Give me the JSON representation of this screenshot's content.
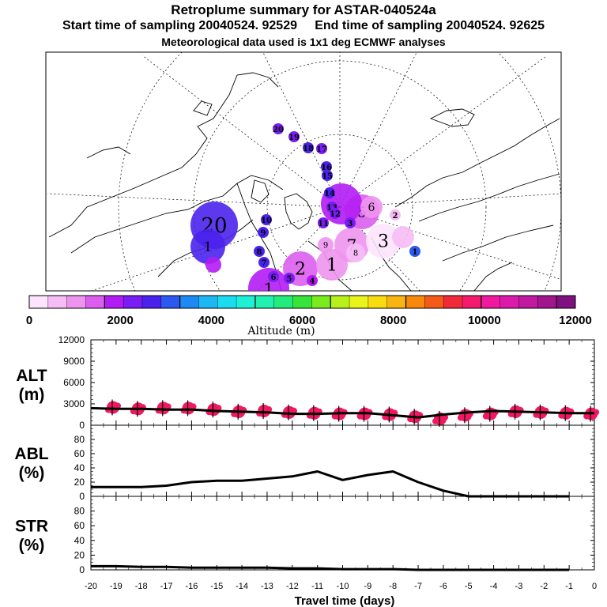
{
  "header": {
    "title": "Retroplume summary for ASTAR-040524a",
    "sampling_line": "Start time of sampling 20040524. 92529     End time of sampling 20040524. 92625",
    "met_line": "Meteorological data used is 1x1 deg ECMWF analyses"
  },
  "colorbar": {
    "label": "Altitude (m)",
    "ticks": [
      "0",
      "2000",
      "4000",
      "6000",
      "8000",
      "10000",
      "12000"
    ],
    "colors": [
      "#fce4fc",
      "#f6bcf6",
      "#ee94ee",
      "#dc5ef0",
      "#b21cf4",
      "#7a1cf4",
      "#4a22ec",
      "#2a58f0",
      "#1e88f4",
      "#1cb8f4",
      "#1cdcf0",
      "#1ef0d6",
      "#22f0b0",
      "#22ec7c",
      "#36e43a",
      "#7aec1e",
      "#b8f01c",
      "#e8f41c",
      "#f8dc10",
      "#f8b410",
      "#f8880c",
      "#f45a18",
      "#f02a3a",
      "#f41a6e",
      "#f01a9e",
      "#dc1aaa",
      "#c0189e",
      "#a0168c",
      "#801080"
    ]
  },
  "map": {
    "trajectory_labels": [
      "20",
      "19",
      "18",
      "17",
      "16",
      "15",
      "14",
      "13",
      "12",
      "11",
      "10",
      "9",
      "8",
      "7",
      "6",
      "5",
      "4",
      "3",
      "2",
      "1"
    ]
  },
  "chart_data": [
    {
      "type": "line",
      "panel": "ALT",
      "ylabel": "ALT (m)",
      "ylabel_lines": [
        "ALT",
        "(m)"
      ],
      "ylim": [
        0,
        12000
      ],
      "yticks": [
        "0",
        "3000",
        "6000",
        "9000",
        "12000"
      ],
      "x": [
        -20,
        -19,
        -18,
        -17,
        -16,
        -15,
        -14,
        -13,
        -12,
        -11,
        -10,
        -9,
        -8,
        -7,
        -6,
        -5,
        -4,
        -3,
        -2,
        -1,
        0
      ],
      "series": [
        {
          "name": "mean altitude",
          "values": [
            2400,
            2300,
            2300,
            2200,
            2200,
            2000,
            1900,
            1800,
            1600,
            1600,
            1700,
            1700,
            1400,
            1100,
            1500,
            1800,
            2000,
            1900,
            1800,
            1700,
            1700
          ]
        },
        {
          "name": "altitude spread (scatter)",
          "values": [
            2500,
            2300,
            2400,
            2400,
            2200,
            1900,
            2000,
            1800,
            1700,
            1600,
            1600,
            1500,
            1200,
            900,
            1400,
            1600,
            1900,
            1800,
            1700,
            1600,
            1600
          ]
        }
      ]
    },
    {
      "type": "line",
      "panel": "ABL",
      "ylabel": "ABL (%)",
      "ylabel_lines": [
        "ABL",
        "(%)"
      ],
      "ylim": [
        0,
        100
      ],
      "yticks": [
        "0",
        "20",
        "40",
        "60",
        "80"
      ],
      "x": [
        -20,
        -19,
        -18,
        -17,
        -16,
        -15,
        -14,
        -13,
        -12,
        -11,
        -10,
        -9,
        -8,
        -7,
        -6,
        -5,
        -4,
        -3,
        -2,
        -1
      ],
      "series": [
        {
          "name": "fraction in boundary layer",
          "values": [
            13,
            13,
            13,
            15,
            20,
            22,
            22,
            25,
            28,
            35,
            23,
            30,
            35,
            20,
            8,
            0,
            0,
            0,
            0,
            0
          ]
        }
      ]
    },
    {
      "type": "line",
      "panel": "STR",
      "ylabel": "STR (%)",
      "ylabel_lines": [
        "STR",
        "(%)"
      ],
      "ylim": [
        0,
        100
      ],
      "yticks": [
        "0",
        "20",
        "40",
        "60",
        "80"
      ],
      "xlabel": "Travel time (days)",
      "xticks": [
        "-20",
        "-19",
        "-18",
        "-17",
        "-16",
        "-15",
        "-14",
        "-13",
        "-12",
        "-11",
        "-10",
        "-9",
        "-8",
        "-7",
        "-6",
        "-5",
        "-4",
        "-3",
        "-2",
        "-1",
        "0"
      ],
      "x": [
        -20,
        -19,
        -18,
        -17,
        -16,
        -15,
        -14,
        -13,
        -12,
        -11,
        -10,
        -9,
        -8,
        -7,
        -6,
        -5,
        -4,
        -3,
        -2,
        -1
      ],
      "series": [
        {
          "name": "fraction in stratosphere",
          "values": [
            5,
            5,
            4,
            4,
            3,
            3,
            3,
            3,
            2,
            2,
            1,
            1,
            1,
            0,
            0,
            0,
            0,
            0,
            0,
            0
          ]
        }
      ]
    }
  ]
}
